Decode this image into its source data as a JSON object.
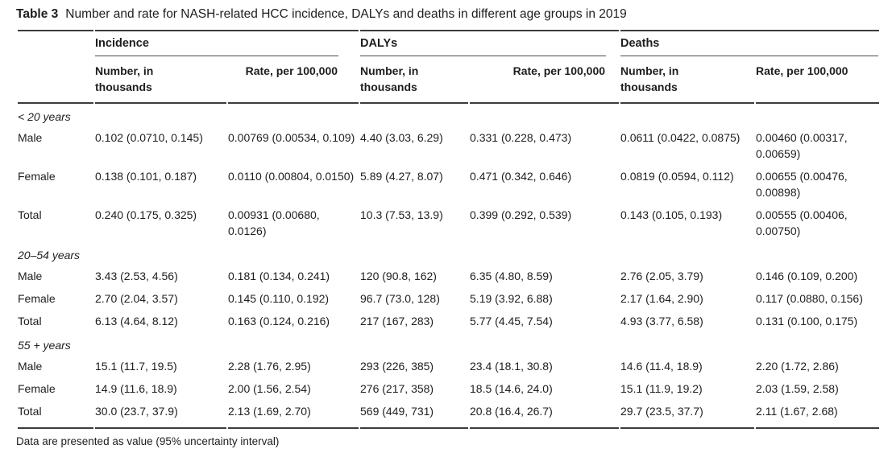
{
  "title": {
    "label": "Table 3",
    "caption": "Number and rate for NASH-related HCC incidence, DALYs and deaths in different age groups in 2019"
  },
  "table": {
    "groups": [
      {
        "id": "incidence",
        "label": "Incidence"
      },
      {
        "id": "dalys",
        "label": "DALYs"
      },
      {
        "id": "deaths",
        "label": "Deaths"
      }
    ],
    "subheaders": {
      "number": "Number, in thousands",
      "rate": "Rate, per 100,000"
    },
    "sections": [
      {
        "label": "< 20 years",
        "rows": [
          {
            "label": "Male",
            "cells": [
              "0.102 (0.0710, 0.145)",
              "0.00769 (0.00534, 0.109)",
              "4.40 (3.03, 6.29)",
              "0.331 (0.228, 0.473)",
              "0.0611 (0.0422, 0.0875)",
              "0.00460 (0.00317, 0.00659)"
            ]
          },
          {
            "label": "Female",
            "cells": [
              "0.138 (0.101, 0.187)",
              "0.0110 (0.00804, 0.0150)",
              "5.89 (4.27, 8.07)",
              "0.471 (0.342, 0.646)",
              "0.0819 (0.0594, 0.112)",
              "0.00655 (0.00476, 0.00898)"
            ]
          },
          {
            "label": "Total",
            "cells": [
              "0.240 (0.175, 0.325)",
              "0.00931 (0.00680, 0.0126)",
              "10.3 (7.53, 13.9)",
              "0.399 (0.292, 0.539)",
              "0.143 (0.105, 0.193)",
              "0.00555 (0.00406, 0.00750)"
            ]
          }
        ]
      },
      {
        "label": "20–54 years",
        "rows": [
          {
            "label": "Male",
            "cells": [
              "3.43 (2.53, 4.56)",
              "0.181 (0.134, 0.241)",
              "120 (90.8, 162)",
              "6.35 (4.80, 8.59)",
              "2.76 (2.05, 3.79)",
              "0.146 (0.109, 0.200)"
            ]
          },
          {
            "label": "Female",
            "cells": [
              "2.70 (2.04, 3.57)",
              "0.145 (0.110, 0.192)",
              "96.7 (73.0, 128)",
              "5.19 (3.92, 6.88)",
              "2.17 (1.64, 2.90)",
              "0.117 (0.0880, 0.156)"
            ]
          },
          {
            "label": "Total",
            "cells": [
              "6.13 (4.64, 8.12)",
              "0.163 (0.124, 0.216)",
              "217 (167, 283)",
              "5.77 (4.45, 7.54)",
              "4.93 (3.77, 6.58)",
              "0.131 (0.100, 0.175)"
            ]
          }
        ]
      },
      {
        "label": "55 + years",
        "rows": [
          {
            "label": "Male",
            "cells": [
              "15.1 (11.7, 19.5)",
              "2.28 (1.76, 2.95)",
              "293 (226, 385)",
              "23.4 (18.1, 30.8)",
              "14.6 (11.4, 18.9)",
              "2.20 (1.72, 2.86)"
            ]
          },
          {
            "label": "Female",
            "cells": [
              "14.9 (11.6, 18.9)",
              "2.00 (1.56, 2.54)",
              "276 (217, 358)",
              "18.5 (14.6, 24.0)",
              "15.1 (11.9, 19.2)",
              "2.03 (1.59, 2.58)"
            ]
          },
          {
            "label": "Total",
            "cells": [
              "30.0 (23.7, 37.9)",
              "2.13 (1.69, 2.70)",
              "569 (449, 731)",
              "20.8 (16.4, 26.7)",
              "29.7 (23.5, 37.7)",
              "2.11 (1.67, 2.68)"
            ]
          }
        ]
      }
    ],
    "footnote": "Data are presented as value (95% uncertainty interval)"
  }
}
